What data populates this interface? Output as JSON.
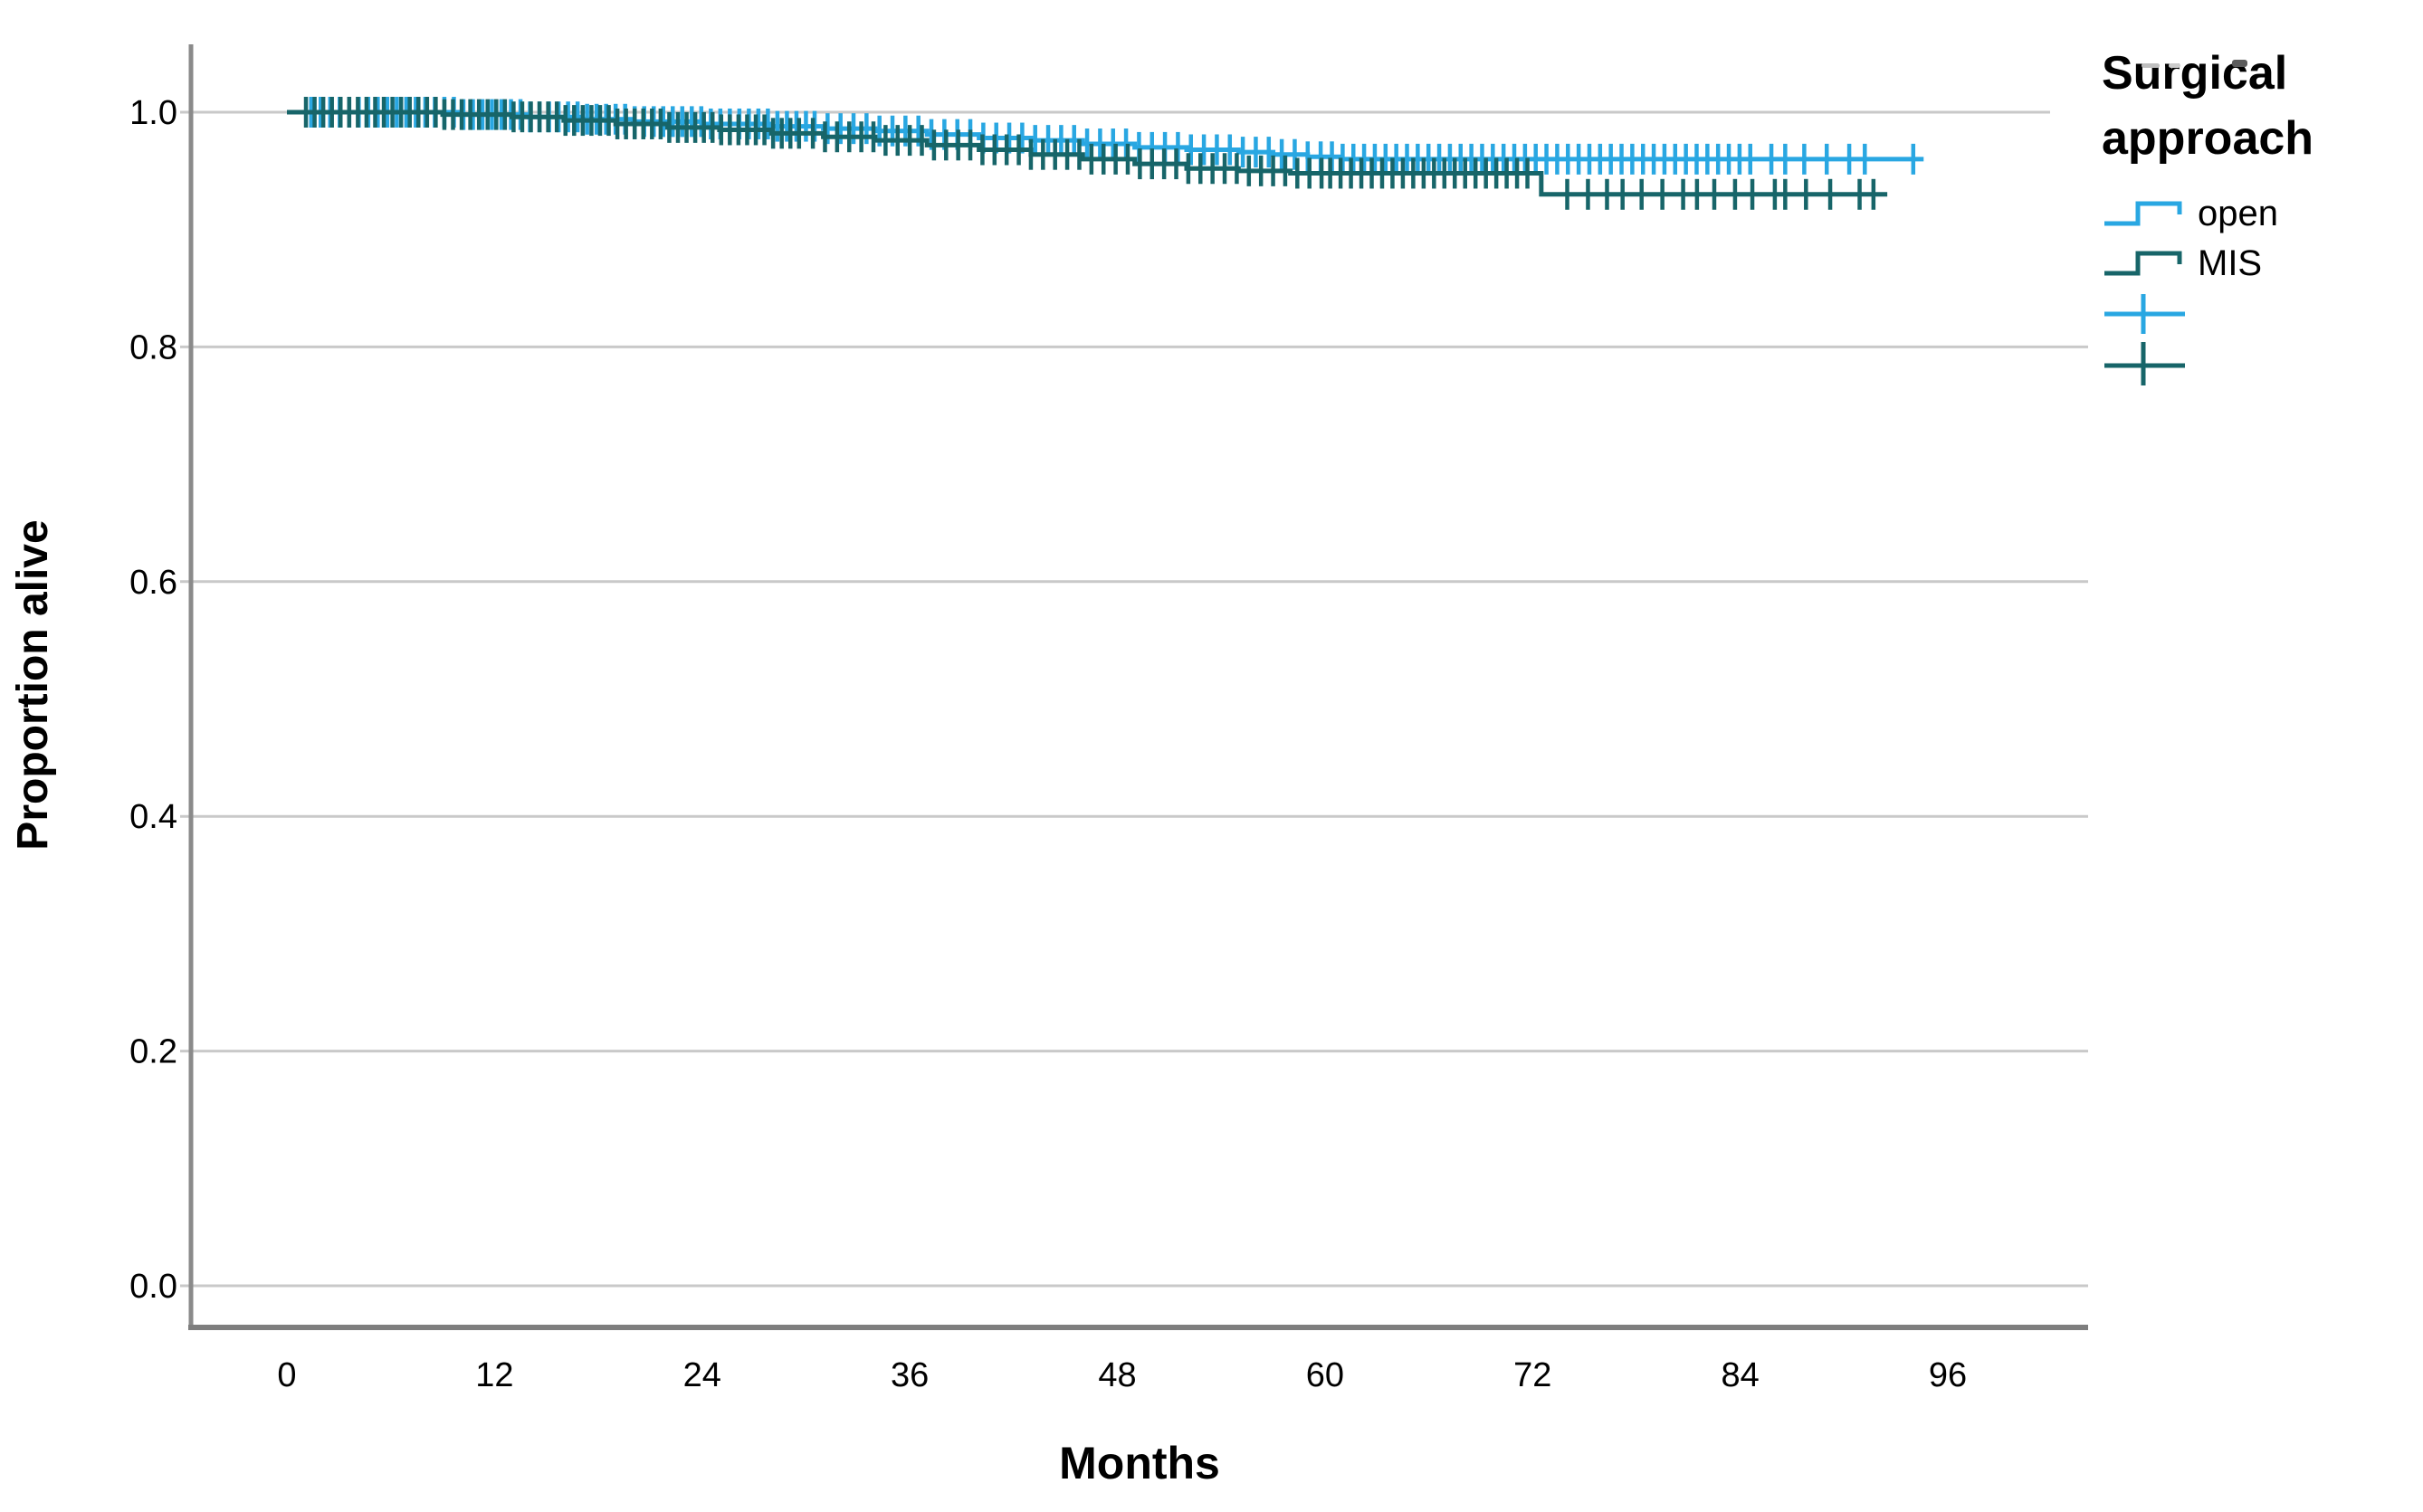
{
  "chart_data": {
    "type": "line",
    "subtype": "kaplan-meier-step-survival",
    "title": "",
    "xlabel": "Months",
    "ylabel": "Proportion alive",
    "legend_title": "Surgical approach",
    "legend_position": "right",
    "grid": "horizontal",
    "xlim": [
      0,
      104
    ],
    "ylim": [
      0.0,
      1.0
    ],
    "xticks": [
      {
        "v": 0,
        "label": "0"
      },
      {
        "v": 12,
        "label": "12"
      },
      {
        "v": 24,
        "label": "24"
      },
      {
        "v": 36,
        "label": "36"
      },
      {
        "v": 48,
        "label": "48"
      },
      {
        "v": 60,
        "label": "60"
      },
      {
        "v": 72,
        "label": "72"
      },
      {
        "v": 84,
        "label": "84"
      },
      {
        "v": 96,
        "label": "96"
      }
    ],
    "yticks": [
      {
        "v": 1.0,
        "label": "1.0"
      },
      {
        "v": 0.8,
        "label": "0.8"
      },
      {
        "v": 0.6,
        "label": "0.6"
      },
      {
        "v": 0.4,
        "label": "0.4"
      },
      {
        "v": 0.2,
        "label": "0.2"
      },
      {
        "v": 0.0,
        "label": "0.0"
      }
    ],
    "censor_marker": "plus",
    "series": [
      {
        "name": "open",
        "color": "#29A7E2",
        "end_month": 94.6,
        "steps": [
          [
            0,
            1.0
          ],
          [
            10,
            0.998
          ],
          [
            14,
            0.996
          ],
          [
            17,
            0.994
          ],
          [
            20,
            0.992
          ],
          [
            24,
            0.99
          ],
          [
            28,
            0.988
          ],
          [
            31,
            0.986
          ],
          [
            34,
            0.984
          ],
          [
            37,
            0.981
          ],
          [
            40,
            0.978
          ],
          [
            43,
            0.976
          ],
          [
            46,
            0.973
          ],
          [
            49,
            0.97
          ],
          [
            52,
            0.968
          ],
          [
            55,
            0.966
          ],
          [
            57,
            0.964
          ],
          [
            59,
            0.962
          ],
          [
            61,
            0.96
          ]
        ],
        "censor_runs": [
          {
            "from": 1.4,
            "to": 30,
            "step": 0.55
          },
          {
            "from": 30.5,
            "to": 60,
            "step": 0.75
          },
          {
            "from": 60.4,
            "to": 85,
            "step": 0.62
          }
        ],
        "censor_extra": [
          85.8,
          86.6,
          87.7,
          89.0,
          90.3,
          91.2,
          94.0
        ]
      },
      {
        "name": "MIS",
        "color": "#176569",
        "end_month": 92.5,
        "steps": [
          [
            0,
            1.0
          ],
          [
            9,
            0.998
          ],
          [
            13,
            0.996
          ],
          [
            16,
            0.993
          ],
          [
            19,
            0.99
          ],
          [
            22,
            0.987
          ],
          [
            25,
            0.985
          ],
          [
            28,
            0.982
          ],
          [
            31,
            0.979
          ],
          [
            34,
            0.976
          ],
          [
            37,
            0.972
          ],
          [
            40,
            0.968
          ],
          [
            43,
            0.964
          ],
          [
            46,
            0.96
          ],
          [
            49,
            0.956
          ],
          [
            52,
            0.952
          ],
          [
            55,
            0.95
          ],
          [
            58,
            0.948
          ],
          [
            72.5,
            0.93
          ]
        ],
        "censor_runs": [
          {
            "from": 1.1,
            "to": 30,
            "step": 0.5
          },
          {
            "from": 30.4,
            "to": 60,
            "step": 0.7
          },
          {
            "from": 60.3,
            "to": 72,
            "step": 0.6
          }
        ],
        "censor_extra": [
          74.0,
          75.2,
          76.3,
          77.2,
          78.3,
          79.5,
          80.7,
          81.5,
          82.5,
          83.7,
          84.7,
          86.0,
          86.6,
          87.8,
          89.2,
          90.9,
          91.7
        ]
      }
    ],
    "colors": {
      "grid": "#c9c9c9",
      "axis_left": "#8a8a8a",
      "axis_bottom": "#7e7e7e",
      "text": "#000000"
    }
  }
}
